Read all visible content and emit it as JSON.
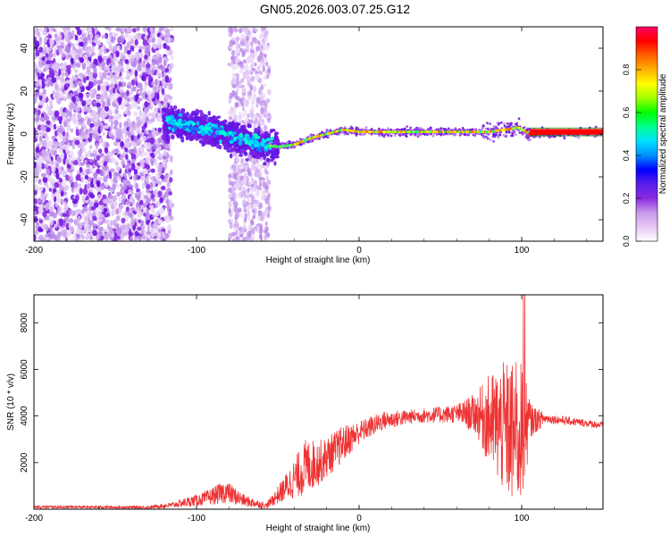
{
  "title": "GN05.2026.003.07.25.G12",
  "chart_data": [
    {
      "type": "heatmap",
      "xlabel": "Height of straight line (km)",
      "ylabel": "Frequency (Hz)",
      "xlim": [
        -200,
        150
      ],
      "ylim": [
        -50,
        50
      ],
      "x_ticks": [
        -200,
        -100,
        0,
        100
      ],
      "y_ticks": [
        -40,
        -20,
        0,
        20,
        40
      ],
      "colorbar": {
        "label": "Normalized spectral amplitude",
        "range": [
          0,
          1
        ],
        "ticks": [
          "0.0",
          "0.2",
          "0.4",
          "0.6",
          "0.8"
        ],
        "colors": [
          "#ffffff",
          "#e8c8f6",
          "#c89aec",
          "#8a2be2",
          "#5a1de8",
          "#0000ff",
          "#0090ff",
          "#00e0ff",
          "#00ff90",
          "#00ff00",
          "#a0ff00",
          "#ffff00",
          "#ffb000",
          "#ff6000",
          "#ff0000",
          "#ff0060"
        ]
      },
      "center_line_freq": [
        {
          "x": -118,
          "f": 6
        },
        {
          "x": -105,
          "f": 4
        },
        {
          "x": -90,
          "f": 2
        },
        {
          "x": -75,
          "f": -2
        },
        {
          "x": -60,
          "f": -5
        },
        {
          "x": -50,
          "f": -6
        },
        {
          "x": -40,
          "f": -5
        },
        {
          "x": -30,
          "f": -2
        },
        {
          "x": -20,
          "f": 0
        },
        {
          "x": -10,
          "f": 2
        },
        {
          "x": 0,
          "f": 1
        },
        {
          "x": 10,
          "f": 1
        },
        {
          "x": 80,
          "f": 1
        },
        {
          "x": 90,
          "f": 2
        },
        {
          "x": 98,
          "f": 3
        },
        {
          "x": 105,
          "f": 0
        },
        {
          "x": 150,
          "f": 1
        }
      ]
    },
    {
      "type": "line",
      "xlabel": "Height of straight line (km)",
      "ylabel": "SNR (10 * v/v)",
      "xlim": [
        -200,
        150
      ],
      "ylim": [
        0,
        9200
      ],
      "x_ticks": [
        -200,
        -100,
        0,
        100
      ],
      "y_ticks": [
        2000,
        4000,
        6000,
        8000
      ],
      "line_color": "#ee3333",
      "envelope": [
        {
          "x": -200,
          "y": 100,
          "a": 60
        },
        {
          "x": -130,
          "y": 80,
          "a": 60
        },
        {
          "x": -115,
          "y": 180,
          "a": 120
        },
        {
          "x": -95,
          "y": 450,
          "a": 300
        },
        {
          "x": -82,
          "y": 750,
          "a": 500
        },
        {
          "x": -70,
          "y": 350,
          "a": 250
        },
        {
          "x": -57,
          "y": 150,
          "a": 120
        },
        {
          "x": -47,
          "y": 800,
          "a": 500
        },
        {
          "x": -33,
          "y": 1800,
          "a": 1200
        },
        {
          "x": -22,
          "y": 2100,
          "a": 900
        },
        {
          "x": -10,
          "y": 2800,
          "a": 800
        },
        {
          "x": 0,
          "y": 3300,
          "a": 500
        },
        {
          "x": 15,
          "y": 3800,
          "a": 400
        },
        {
          "x": 35,
          "y": 4000,
          "a": 300
        },
        {
          "x": 60,
          "y": 4100,
          "a": 400
        },
        {
          "x": 72,
          "y": 4100,
          "a": 900
        },
        {
          "x": 80,
          "y": 3800,
          "a": 2000
        },
        {
          "x": 88,
          "y": 3500,
          "a": 2800
        },
        {
          "x": 95,
          "y": 3200,
          "a": 3200
        },
        {
          "x": 100,
          "y": 3300,
          "a": 3000
        },
        {
          "x": 106,
          "y": 3800,
          "a": 700
        },
        {
          "x": 115,
          "y": 3900,
          "a": 200
        },
        {
          "x": 150,
          "y": 3600,
          "a": 150
        }
      ]
    }
  ]
}
